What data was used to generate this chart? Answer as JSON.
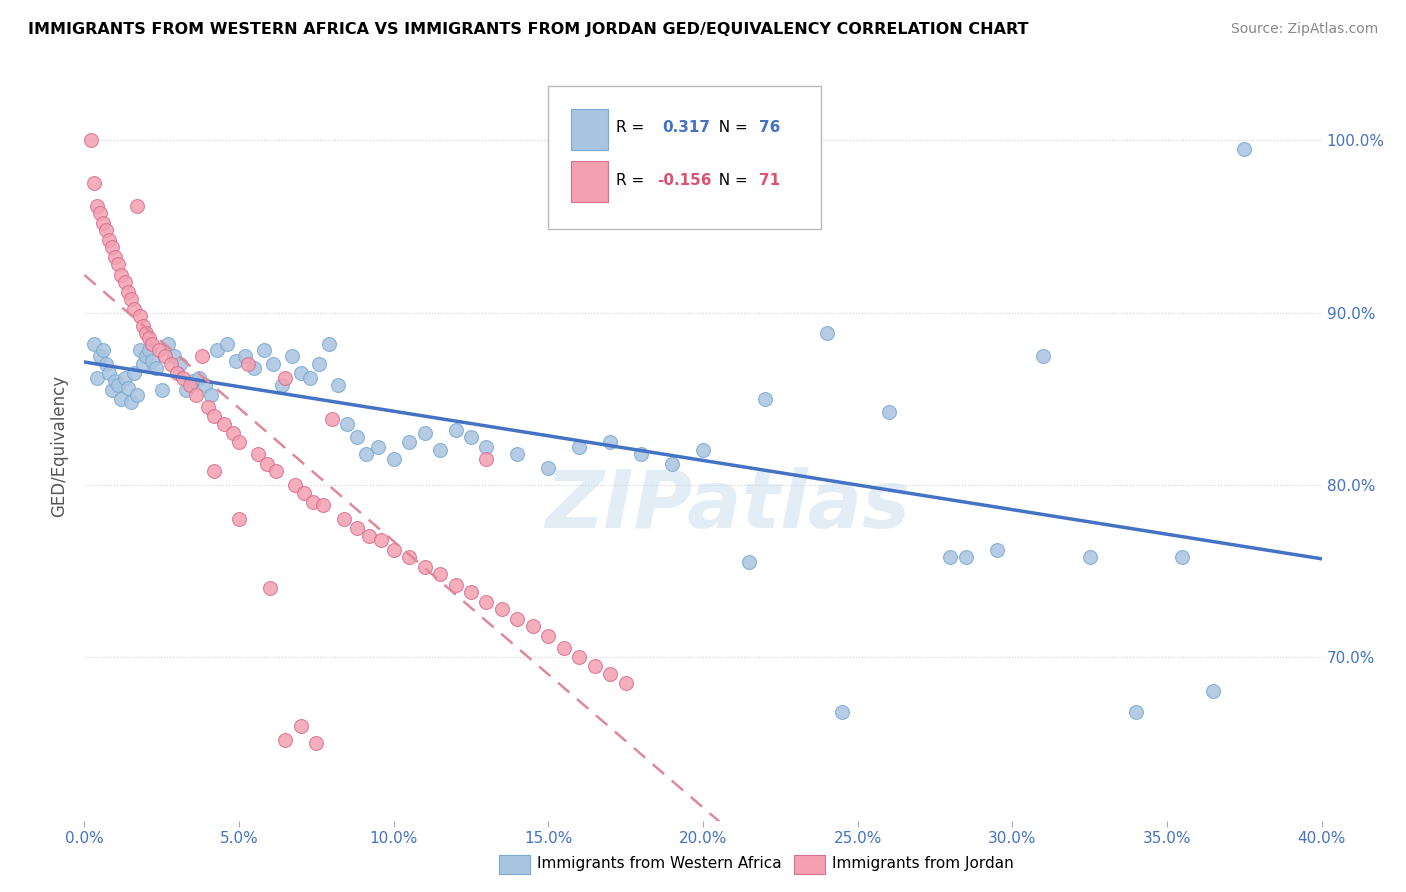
{
  "title": "IMMIGRANTS FROM WESTERN AFRICA VS IMMIGRANTS FROM JORDAN GED/EQUIVALENCY CORRELATION CHART",
  "source": "Source: ZipAtlas.com",
  "ylabel": "GED/Equivalency",
  "watermark": "ZIPatlas",
  "blue_color": "#a8c4e0",
  "pink_color": "#f4a0b0",
  "blue_line_color": "#4472c4",
  "pink_line_color": "#e08898",
  "xmin": 0.0,
  "xmax": 0.4,
  "ymin": 0.605,
  "ymax": 1.04,
  "y_ticks": [
    0.7,
    0.8,
    0.9,
    1.0
  ],
  "y_tick_labels": [
    "70.0%",
    "80.0%",
    "90.0%",
    "100.0%"
  ],
  "x_ticks": [
    0.0,
    0.05,
    0.1,
    0.15,
    0.2,
    0.25,
    0.3,
    0.35,
    0.4
  ],
  "blue_R": 0.317,
  "pink_R": -0.156,
  "blue_N": 76,
  "pink_N": 71,
  "blue_points": [
    [
      0.003,
      0.882
    ],
    [
      0.004,
      0.862
    ],
    [
      0.005,
      0.875
    ],
    [
      0.006,
      0.878
    ],
    [
      0.007,
      0.87
    ],
    [
      0.008,
      0.865
    ],
    [
      0.009,
      0.855
    ],
    [
      0.01,
      0.86
    ],
    [
      0.011,
      0.858
    ],
    [
      0.012,
      0.85
    ],
    [
      0.013,
      0.862
    ],
    [
      0.014,
      0.856
    ],
    [
      0.015,
      0.848
    ],
    [
      0.016,
      0.865
    ],
    [
      0.017,
      0.852
    ],
    [
      0.018,
      0.878
    ],
    [
      0.019,
      0.87
    ],
    [
      0.02,
      0.875
    ],
    [
      0.021,
      0.878
    ],
    [
      0.022,
      0.872
    ],
    [
      0.023,
      0.868
    ],
    [
      0.025,
      0.855
    ],
    [
      0.027,
      0.882
    ],
    [
      0.029,
      0.875
    ],
    [
      0.031,
      0.87
    ],
    [
      0.033,
      0.855
    ],
    [
      0.035,
      0.86
    ],
    [
      0.037,
      0.862
    ],
    [
      0.039,
      0.858
    ],
    [
      0.041,
      0.852
    ],
    [
      0.043,
      0.878
    ],
    [
      0.046,
      0.882
    ],
    [
      0.049,
      0.872
    ],
    [
      0.052,
      0.875
    ],
    [
      0.055,
      0.868
    ],
    [
      0.058,
      0.878
    ],
    [
      0.061,
      0.87
    ],
    [
      0.064,
      0.858
    ],
    [
      0.067,
      0.875
    ],
    [
      0.07,
      0.865
    ],
    [
      0.073,
      0.862
    ],
    [
      0.076,
      0.87
    ],
    [
      0.079,
      0.882
    ],
    [
      0.082,
      0.858
    ],
    [
      0.085,
      0.835
    ],
    [
      0.088,
      0.828
    ],
    [
      0.091,
      0.818
    ],
    [
      0.095,
      0.822
    ],
    [
      0.1,
      0.815
    ],
    [
      0.105,
      0.825
    ],
    [
      0.11,
      0.83
    ],
    [
      0.115,
      0.82
    ],
    [
      0.12,
      0.832
    ],
    [
      0.125,
      0.828
    ],
    [
      0.13,
      0.822
    ],
    [
      0.14,
      0.818
    ],
    [
      0.15,
      0.81
    ],
    [
      0.16,
      0.822
    ],
    [
      0.17,
      0.825
    ],
    [
      0.18,
      0.818
    ],
    [
      0.19,
      0.812
    ],
    [
      0.2,
      0.82
    ],
    [
      0.22,
      0.85
    ],
    [
      0.24,
      0.888
    ],
    [
      0.26,
      0.842
    ],
    [
      0.28,
      0.758
    ],
    [
      0.295,
      0.762
    ],
    [
      0.31,
      0.875
    ],
    [
      0.325,
      0.758
    ],
    [
      0.34,
      0.668
    ],
    [
      0.355,
      0.758
    ],
    [
      0.365,
      0.68
    ],
    [
      0.285,
      0.758
    ],
    [
      0.245,
      0.668
    ],
    [
      0.215,
      0.755
    ],
    [
      0.375,
      0.995
    ]
  ],
  "pink_points": [
    [
      0.002,
      1.0
    ],
    [
      0.003,
      0.975
    ],
    [
      0.004,
      0.962
    ],
    [
      0.005,
      0.958
    ],
    [
      0.006,
      0.952
    ],
    [
      0.007,
      0.948
    ],
    [
      0.008,
      0.942
    ],
    [
      0.009,
      0.938
    ],
    [
      0.01,
      0.932
    ],
    [
      0.011,
      0.928
    ],
    [
      0.012,
      0.922
    ],
    [
      0.013,
      0.918
    ],
    [
      0.014,
      0.912
    ],
    [
      0.015,
      0.908
    ],
    [
      0.016,
      0.902
    ],
    [
      0.017,
      0.962
    ],
    [
      0.018,
      0.898
    ],
    [
      0.019,
      0.892
    ],
    [
      0.02,
      0.888
    ],
    [
      0.021,
      0.885
    ],
    [
      0.022,
      0.882
    ],
    [
      0.024,
      0.878
    ],
    [
      0.026,
      0.875
    ],
    [
      0.028,
      0.87
    ],
    [
      0.03,
      0.865
    ],
    [
      0.032,
      0.862
    ],
    [
      0.034,
      0.858
    ],
    [
      0.036,
      0.852
    ],
    [
      0.038,
      0.875
    ],
    [
      0.04,
      0.845
    ],
    [
      0.042,
      0.84
    ],
    [
      0.045,
      0.835
    ],
    [
      0.048,
      0.83
    ],
    [
      0.05,
      0.825
    ],
    [
      0.053,
      0.87
    ],
    [
      0.056,
      0.818
    ],
    [
      0.059,
      0.812
    ],
    [
      0.062,
      0.808
    ],
    [
      0.065,
      0.862
    ],
    [
      0.068,
      0.8
    ],
    [
      0.071,
      0.795
    ],
    [
      0.074,
      0.79
    ],
    [
      0.077,
      0.788
    ],
    [
      0.08,
      0.838
    ],
    [
      0.084,
      0.78
    ],
    [
      0.088,
      0.775
    ],
    [
      0.092,
      0.77
    ],
    [
      0.096,
      0.768
    ],
    [
      0.1,
      0.762
    ],
    [
      0.105,
      0.758
    ],
    [
      0.11,
      0.752
    ],
    [
      0.115,
      0.748
    ],
    [
      0.12,
      0.742
    ],
    [
      0.125,
      0.738
    ],
    [
      0.13,
      0.732
    ],
    [
      0.135,
      0.728
    ],
    [
      0.14,
      0.722
    ],
    [
      0.145,
      0.718
    ],
    [
      0.15,
      0.712
    ],
    [
      0.155,
      0.705
    ],
    [
      0.16,
      0.7
    ],
    [
      0.165,
      0.695
    ],
    [
      0.17,
      0.69
    ],
    [
      0.175,
      0.685
    ],
    [
      0.13,
      0.815
    ],
    [
      0.05,
      0.78
    ],
    [
      0.042,
      0.808
    ],
    [
      0.06,
      0.74
    ],
    [
      0.065,
      0.652
    ],
    [
      0.07,
      0.66
    ],
    [
      0.075,
      0.65
    ]
  ]
}
